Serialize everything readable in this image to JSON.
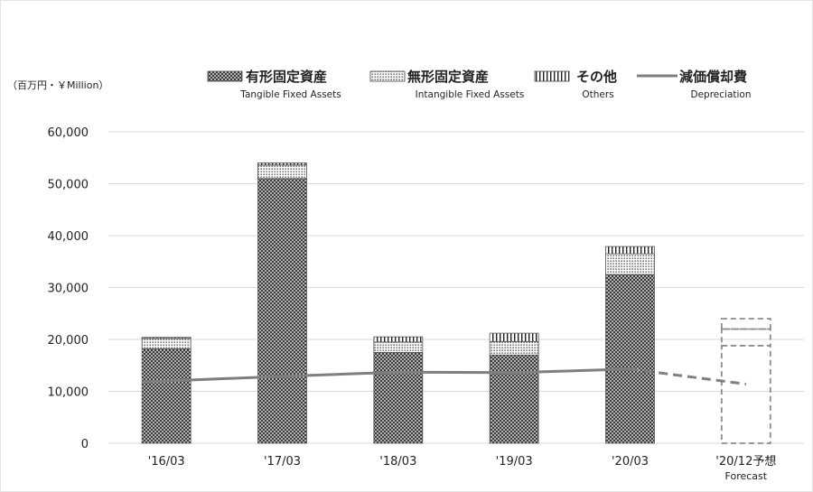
{
  "chart_data": {
    "type": "bar",
    "stacked": true,
    "unit_label": "（百万円・￥Million）",
    "categories": [
      {
        "main": "'16/03",
        "sub": ""
      },
      {
        "main": "'17/03",
        "sub": ""
      },
      {
        "main": "'18/03",
        "sub": ""
      },
      {
        "main": "'19/03",
        "sub": ""
      },
      {
        "main": "'20/03",
        "sub": ""
      },
      {
        "main": "'20/12予想",
        "sub": "Forecast"
      }
    ],
    "forecast_index": 5,
    "ylim": [
      0,
      60000
    ],
    "yticks": [
      "0",
      "10,000",
      "20,000",
      "30,000",
      "40,000",
      "50,000",
      "60,000"
    ],
    "ytick_values": [
      0,
      10000,
      20000,
      30000,
      40000,
      50000,
      60000
    ],
    "grid": true,
    "legend_position": "top",
    "series": [
      {
        "key": "tangible",
        "name": "有形固定資産",
        "name_en": "Tangible Fixed Assets",
        "pattern": "crosshatch",
        "values": [
          18200,
          51000,
          17500,
          17000,
          32500,
          18800
        ]
      },
      {
        "key": "intangible",
        "name": "無形固定資産",
        "name_en": "Intangible Fixed Assets",
        "pattern": "dots",
        "values": [
          2000,
          2600,
          2000,
          2600,
          4000,
          3200
        ]
      },
      {
        "key": "others",
        "name": "その他",
        "name_en": "Others",
        "pattern": "vertical",
        "values": [
          200,
          400,
          1000,
          1600,
          1400,
          2000
        ]
      }
    ],
    "line": {
      "key": "depreciation",
      "name": "減価償却費",
      "name_en": "Depreciation",
      "values": [
        11800,
        12900,
        13700,
        13600,
        14300,
        11400
      ],
      "color": "#7f7f7f"
    },
    "colors": {
      "bar": "#4a4a4a",
      "line": "#7f7f7f",
      "grid": "#d9d9d9",
      "forecast": "#8c8c8c"
    }
  }
}
